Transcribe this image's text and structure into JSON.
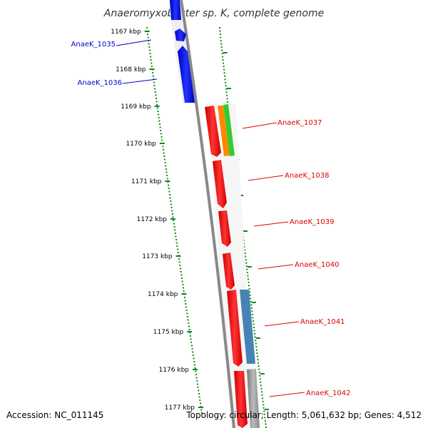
{
  "title": "Anaeromyxobacter sp. K, complete genome",
  "footer": {
    "accession": "Accession: NC_011145",
    "info": "Topology: circular; Length: 5,061,632 bp; Genes: 4,512"
  },
  "kbp_ticks": [
    "1167 kbp",
    "1168 kbp",
    "1169 kbp",
    "1170 kbp",
    "1171 kbp",
    "1172 kbp",
    "1173 kbp",
    "1174 kbp",
    "1175 kbp",
    "1176 kbp",
    "1177 kbp"
  ],
  "left_genes": [
    {
      "label": "AnaeK_1035",
      "color": "#0000cc"
    },
    {
      "label": "AnaeK_1036",
      "color": "#0000cc"
    }
  ],
  "right_genes": [
    {
      "label": "AnaeK_1037",
      "color": "#dd0000"
    },
    {
      "label": "AnaeK_1038",
      "color": "#dd0000"
    },
    {
      "label": "AnaeK_1039",
      "color": "#dd0000"
    },
    {
      "label": "AnaeK_1040",
      "color": "#dd0000"
    },
    {
      "label": "AnaeK_1041",
      "color": "#dd0000"
    },
    {
      "label": "AnaeK_1042",
      "color": "#dd0000"
    }
  ],
  "colors": {
    "backbone": "#888888",
    "tick_track": "#118811",
    "reverse_strand": "#0000ff",
    "forward_strand": "#ee0000",
    "cog_orange": "#ff8800",
    "cog_green": "#33cc33",
    "cog_steelblue": "#4682b4",
    "cog_grey": "#c0c0c0"
  }
}
